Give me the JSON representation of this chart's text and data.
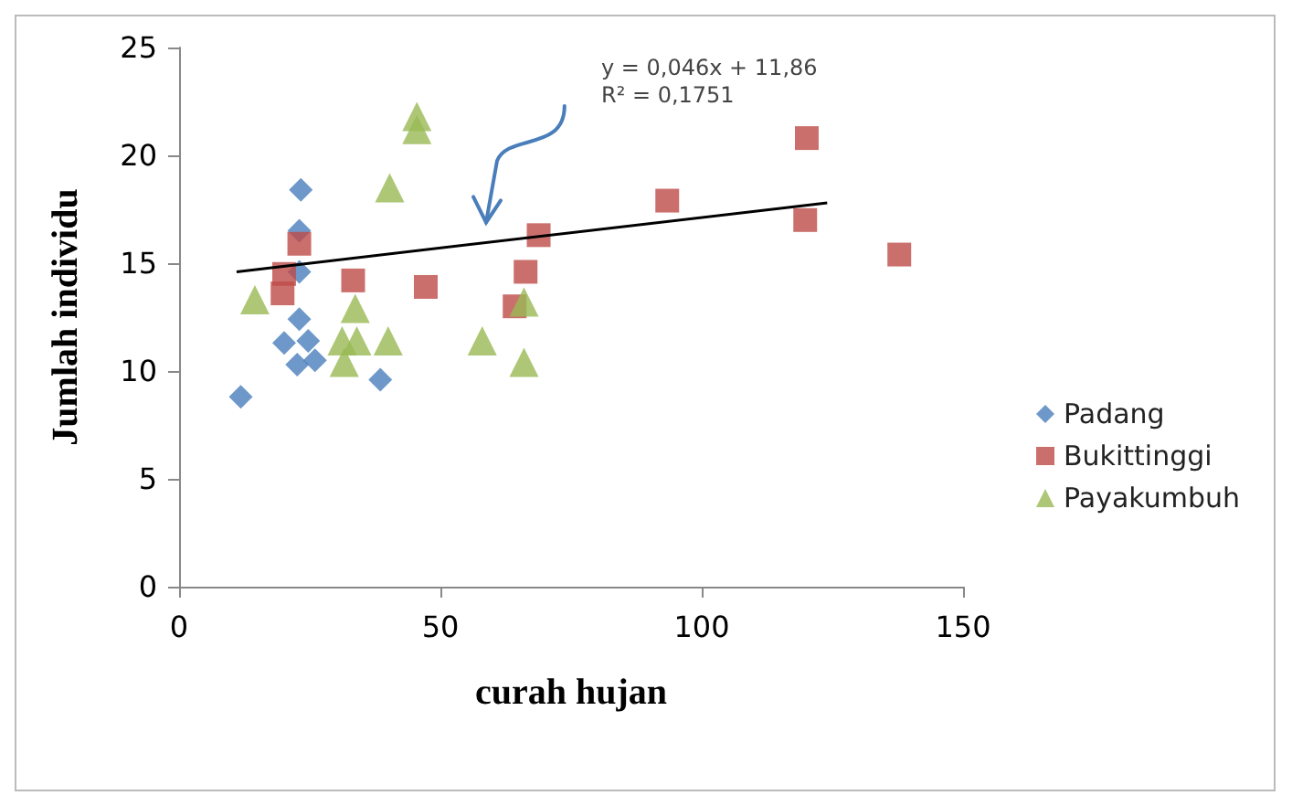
{
  "chart_data": {
    "type": "scatter",
    "xlabel": "curah hujan",
    "ylabel": "Jumlah individu",
    "xlim": [
      0,
      150
    ],
    "xticks": [
      0,
      50,
      100,
      150
    ],
    "ylim": [
      0,
      25
    ],
    "yticks": [
      0,
      5,
      10,
      15,
      20,
      25
    ],
    "grid": false,
    "legend": "right",
    "annotations": [
      "y = 0,046x + 11,86",
      "R² = 0,1751"
    ],
    "series": [
      {
        "name": "Padang",
        "color": "#4a7ebb",
        "marker": "diamond",
        "x": [
          11.8,
          23.3,
          23,
          23,
          23,
          20.1,
          24.7,
          22.6,
          26,
          38.5
        ],
        "values": [
          8.8,
          18.4,
          16.5,
          14.6,
          12.4,
          11.3,
          11.4,
          10.3,
          10.5,
          9.6
        ]
      },
      {
        "name": "Bukittinggi",
        "color": "#be4b48",
        "marker": "square",
        "x": [
          23,
          20.1,
          19.8,
          33.3,
          47.2,
          66.3,
          68.8,
          64.2,
          93.4,
          120.1,
          119.8,
          137.8
        ],
        "values": [
          15.9,
          14.5,
          13.6,
          14.2,
          13.9,
          14.6,
          16.3,
          13,
          17.9,
          20.8,
          17,
          15.4
        ]
      },
      {
        "name": "Payakumbuh",
        "color": "#98b954",
        "marker": "triangle",
        "x": [
          14.5,
          40.3,
          45.5,
          45.5,
          33.7,
          31.2,
          34,
          31.6,
          40,
          58,
          66,
          66
        ],
        "values": [
          13.3,
          18.5,
          21.8,
          21.2,
          12.9,
          11.4,
          11.4,
          10.4,
          11.4,
          11.4,
          10.4,
          13.2
        ]
      },
      {
        "type": "line",
        "color": "#000000",
        "marker": "none",
        "x": [
          11,
          124
        ],
        "values": [
          14.6,
          17.8
        ]
      }
    ]
  }
}
